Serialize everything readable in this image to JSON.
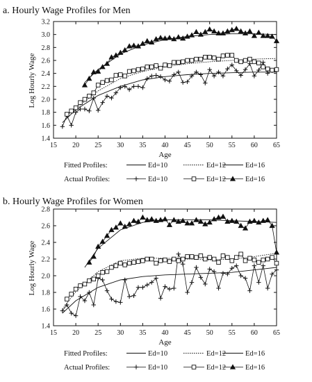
{
  "chart_data": [
    {
      "type": "line",
      "title": "a. Hourly Wage Profiles for Men",
      "xlabel": "Age",
      "ylabel": "Log Hourly Wage",
      "xlim": [
        15,
        65
      ],
      "ylim": [
        1.4,
        3.2
      ],
      "xticks": [
        15,
        20,
        25,
        30,
        35,
        40,
        45,
        50,
        55,
        60,
        65
      ],
      "yticks": [
        1.4,
        1.6,
        1.8,
        2.0,
        2.2,
        2.4,
        2.6,
        2.8,
        3.0,
        3.2
      ],
      "legend": {
        "fitted_label": "Fitted Profiles:",
        "actual_label": "Actual Profiles:",
        "entries": [
          "Ed=10",
          "Ed=12",
          "Ed=16"
        ]
      },
      "series": [
        {
          "name": "Ed=10",
          "kind": "fitted",
          "style": "solid",
          "x": [
            17,
            20,
            25,
            30,
            35,
            40,
            45,
            50,
            55,
            60,
            65
          ],
          "values": [
            1.64,
            1.84,
            2.06,
            2.2,
            2.3,
            2.35,
            2.38,
            2.4,
            2.41,
            2.42,
            2.42
          ]
        },
        {
          "name": "Ed=12",
          "kind": "fitted",
          "style": "dotted",
          "x": [
            18,
            20,
            25,
            30,
            35,
            40,
            45,
            50,
            55,
            60,
            65
          ],
          "values": [
            1.75,
            1.86,
            2.13,
            2.32,
            2.43,
            2.5,
            2.55,
            2.58,
            2.6,
            2.62,
            2.63
          ]
        },
        {
          "name": "Ed=16",
          "kind": "fitted",
          "style": "solid",
          "x": [
            22,
            25,
            30,
            35,
            40,
            45,
            50,
            55,
            60,
            65
          ],
          "values": [
            2.26,
            2.46,
            2.7,
            2.84,
            2.92,
            2.97,
            3.0,
            3.01,
            3.01,
            3.0
          ]
        },
        {
          "name": "Ed=10",
          "kind": "actual",
          "marker": "plus",
          "x": [
            17,
            18,
            19,
            20,
            21,
            22,
            23,
            24,
            25,
            26,
            27,
            28,
            29,
            30,
            31,
            32,
            33,
            34,
            35,
            36,
            37,
            38,
            39,
            40,
            41,
            42,
            43,
            44,
            45,
            46,
            47,
            48,
            49,
            50,
            51,
            52,
            53,
            54,
            55,
            56,
            57,
            58,
            59,
            60,
            61,
            62,
            63,
            64,
            65
          ],
          "values": [
            1.58,
            1.75,
            1.6,
            1.8,
            1.85,
            1.85,
            1.82,
            2.02,
            1.83,
            1.95,
            2.05,
            2.02,
            2.1,
            2.18,
            2.2,
            2.15,
            2.2,
            2.2,
            2.18,
            2.32,
            2.36,
            2.37,
            2.35,
            2.3,
            2.28,
            2.38,
            2.42,
            2.26,
            2.27,
            2.36,
            2.42,
            2.38,
            2.25,
            2.46,
            2.36,
            2.42,
            2.36,
            2.47,
            2.53,
            2.44,
            2.37,
            2.46,
            2.55,
            2.36,
            2.45,
            2.57,
            2.4,
            2.44,
            2.45
          ]
        },
        {
          "name": "Ed=12",
          "kind": "actual",
          "marker": "square",
          "x": [
            18,
            19,
            20,
            21,
            22,
            23,
            24,
            25,
            26,
            27,
            28,
            29,
            30,
            31,
            32,
            33,
            34,
            35,
            36,
            37,
            38,
            39,
            40,
            41,
            42,
            43,
            44,
            45,
            46,
            47,
            48,
            49,
            50,
            51,
            52,
            53,
            54,
            55,
            56,
            57,
            58,
            59,
            60,
            61,
            62,
            63,
            64,
            65
          ],
          "values": [
            1.77,
            1.82,
            1.87,
            1.95,
            2.0,
            2.05,
            2.1,
            2.22,
            2.26,
            2.29,
            2.3,
            2.37,
            2.38,
            2.36,
            2.43,
            2.44,
            2.46,
            2.47,
            2.5,
            2.5,
            2.52,
            2.48,
            2.53,
            2.52,
            2.57,
            2.57,
            2.58,
            2.6,
            2.6,
            2.62,
            2.62,
            2.65,
            2.65,
            2.64,
            2.62,
            2.67,
            2.68,
            2.68,
            2.6,
            2.58,
            2.6,
            2.62,
            2.58,
            2.56,
            2.5,
            2.47,
            2.45,
            2.46
          ]
        },
        {
          "name": "Ed=16",
          "kind": "actual",
          "marker": "triangle",
          "x": [
            22,
            23,
            24,
            25,
            26,
            27,
            28,
            29,
            30,
            31,
            32,
            33,
            34,
            35,
            36,
            37,
            38,
            39,
            40,
            41,
            42,
            43,
            44,
            45,
            46,
            47,
            48,
            49,
            50,
            51,
            52,
            53,
            54,
            55,
            56,
            57,
            58,
            59,
            60,
            61,
            62,
            63,
            64,
            65
          ],
          "values": [
            2.22,
            2.32,
            2.42,
            2.43,
            2.5,
            2.55,
            2.65,
            2.68,
            2.72,
            2.76,
            2.82,
            2.83,
            2.82,
            2.86,
            2.9,
            2.88,
            2.93,
            2.95,
            2.94,
            2.95,
            2.93,
            2.96,
            2.94,
            2.97,
            2.99,
            3.04,
            3.0,
            3.04,
            3.08,
            3.05,
            3.02,
            3.02,
            3.05,
            3.07,
            3.09,
            3.05,
            3.02,
            3.05,
            2.98,
            3.03,
            2.98,
            2.98,
            2.97,
            2.9
          ]
        }
      ]
    },
    {
      "type": "line",
      "title": "b. Hourly Wage Profiles for Women",
      "xlabel": "Age",
      "ylabel": "Log Hourly Wage",
      "xlim": [
        15,
        65
      ],
      "ylim": [
        1.4,
        2.8
      ],
      "xticks": [
        15,
        20,
        25,
        30,
        35,
        40,
        45,
        50,
        55,
        60,
        65
      ],
      "yticks": [
        1.4,
        1.6,
        1.8,
        2.0,
        2.2,
        2.4,
        2.6,
        2.8
      ],
      "legend": {
        "fitted_label": "Fitted Profiles:",
        "actual_label": "Actual Profiles:",
        "entries": [
          "Ed=10",
          "Ed=12",
          "Ed=16"
        ]
      },
      "series": [
        {
          "name": "Ed=10",
          "kind": "fitted",
          "style": "solid",
          "x": [
            17,
            20,
            25,
            30,
            35,
            40,
            45,
            50,
            55,
            60,
            65
          ],
          "values": [
            1.55,
            1.7,
            1.86,
            1.95,
            1.99,
            2.01,
            2.02,
            2.03,
            2.04,
            2.07,
            2.1
          ]
        },
        {
          "name": "Ed=12",
          "kind": "fitted",
          "style": "dotted",
          "x": [
            17,
            20,
            25,
            30,
            35,
            40,
            45,
            50,
            55,
            60,
            65
          ],
          "values": [
            1.6,
            1.81,
            2.05,
            2.18,
            2.21,
            2.21,
            2.2,
            2.19,
            2.2,
            2.23,
            2.27
          ]
        },
        {
          "name": "Ed=16",
          "kind": "fitted",
          "style": "solid",
          "x": [
            22,
            25,
            30,
            35,
            40,
            45,
            50,
            55,
            60,
            65
          ],
          "values": [
            2.1,
            2.33,
            2.55,
            2.64,
            2.67,
            2.67,
            2.67,
            2.66,
            2.65,
            2.64
          ]
        },
        {
          "name": "Ed=10",
          "kind": "actual",
          "marker": "plus",
          "x": [
            17,
            18,
            19,
            20,
            21,
            22,
            23,
            24,
            25,
            26,
            27,
            28,
            29,
            30,
            31,
            32,
            33,
            34,
            35,
            36,
            37,
            38,
            39,
            40,
            41,
            42,
            43,
            44,
            45,
            46,
            47,
            48,
            49,
            50,
            51,
            52,
            53,
            54,
            55,
            56,
            57,
            58,
            59,
            60,
            61,
            62,
            63,
            64,
            65
          ],
          "values": [
            1.58,
            1.65,
            1.55,
            1.52,
            1.75,
            1.7,
            1.8,
            1.65,
            1.97,
            1.95,
            1.82,
            1.72,
            1.69,
            1.68,
            1.95,
            1.75,
            1.76,
            1.86,
            1.86,
            1.89,
            1.92,
            1.97,
            1.73,
            1.87,
            1.84,
            1.85,
            2.26,
            2.14,
            1.8,
            1.92,
            2.1,
            1.98,
            1.9,
            2.08,
            2.05,
            1.85,
            2.03,
            2.02,
            2.09,
            2.12,
            2.0,
            1.97,
            1.82,
            2.12,
            1.92,
            2.12,
            1.85,
            2.02,
            2.07
          ]
        },
        {
          "name": "Ed=12",
          "kind": "actual",
          "marker": "square",
          "x": [
            18,
            19,
            20,
            21,
            22,
            23,
            24,
            25,
            26,
            27,
            28,
            29,
            30,
            31,
            32,
            33,
            34,
            35,
            36,
            37,
            38,
            39,
            40,
            41,
            42,
            43,
            44,
            45,
            46,
            47,
            48,
            49,
            50,
            51,
            52,
            53,
            54,
            55,
            56,
            57,
            58,
            59,
            60,
            61,
            62,
            63,
            64,
            65
          ],
          "values": [
            1.72,
            1.78,
            1.84,
            1.88,
            1.9,
            1.94,
            1.96,
            2.0,
            2.04,
            2.05,
            2.1,
            2.12,
            2.15,
            2.13,
            2.15,
            2.16,
            2.17,
            2.18,
            2.2,
            2.2,
            2.15,
            2.18,
            2.19,
            2.17,
            2.2,
            2.18,
            2.2,
            2.23,
            2.23,
            2.22,
            2.24,
            2.2,
            2.22,
            2.2,
            2.16,
            2.24,
            2.22,
            2.18,
            2.22,
            2.26,
            2.18,
            2.21,
            2.19,
            2.16,
            2.19,
            2.2,
            2.22,
            2.15
          ]
        },
        {
          "name": "Ed=16",
          "kind": "actual",
          "marker": "triangle",
          "x": [
            23,
            24,
            25,
            26,
            27,
            28,
            29,
            30,
            31,
            32,
            33,
            34,
            35,
            36,
            37,
            38,
            39,
            40,
            41,
            42,
            43,
            44,
            45,
            46,
            47,
            48,
            49,
            50,
            51,
            52,
            53,
            54,
            55,
            56,
            57,
            58,
            59,
            60,
            61,
            62,
            63,
            64,
            65
          ],
          "values": [
            2.16,
            2.23,
            2.35,
            2.41,
            2.48,
            2.55,
            2.58,
            2.63,
            2.59,
            2.62,
            2.66,
            2.65,
            2.7,
            2.67,
            2.68,
            2.66,
            2.67,
            2.68,
            2.61,
            2.67,
            2.65,
            2.66,
            2.63,
            2.63,
            2.67,
            2.65,
            2.62,
            2.64,
            2.68,
            2.7,
            2.71,
            2.65,
            2.66,
            2.65,
            2.6,
            2.57,
            2.65,
            2.66,
            2.64,
            2.66,
            2.67,
            2.6,
            2.28
          ]
        }
      ]
    }
  ]
}
